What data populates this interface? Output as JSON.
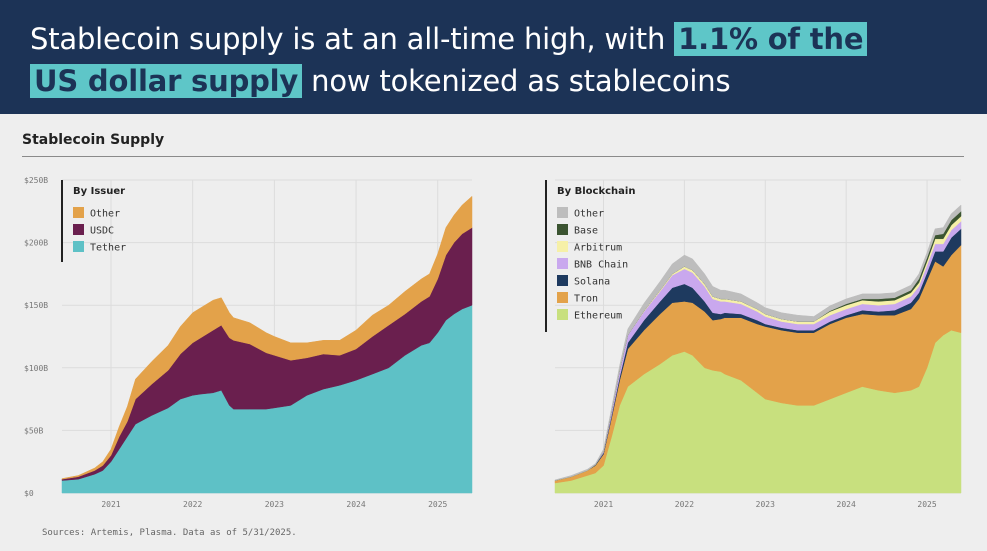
{
  "header": {
    "text_before": "Stablecoin supply is at an all-time high, with",
    "highlight_1": "1.1% of the",
    "highlight_2": "US dollar supply",
    "text_after": "now tokenized as stablecoins"
  },
  "section_title": "Stablecoin Supply",
  "source_note": "Sources: Artemis, Plasma. Data as of 5/31/2025.",
  "colors": {
    "header_bg": "#1c3356",
    "highlight": "#5ec6c8"
  },
  "chart_data": [
    {
      "type": "area",
      "stacked": true,
      "legend_title": "By Issuer",
      "y_tick_labels": [
        "$0",
        "$50B",
        "$100B",
        "$150B",
        "$200B",
        "$250B"
      ],
      "y_ticks": [
        0,
        50,
        100,
        150,
        200,
        250
      ],
      "ylim": [
        0,
        250
      ],
      "x_tick_labels": [
        "2021",
        "2022",
        "2023",
        "2024",
        "2025"
      ],
      "x_ticks": [
        2021,
        2022,
        2023,
        2024,
        2025
      ],
      "xlim": [
        2020.4,
        2025.42
      ],
      "grid": true,
      "legend_position": "top-left",
      "x": [
        2020.4,
        2020.6,
        2020.8,
        2020.9,
        2021.0,
        2021.1,
        2021.2,
        2021.3,
        2021.5,
        2021.7,
        2021.85,
        2022.0,
        2022.1,
        2022.25,
        2022.35,
        2022.45,
        2022.5,
        2022.7,
        2022.9,
        2023.0,
        2023.2,
        2023.4,
        2023.6,
        2023.8,
        2024.0,
        2024.2,
        2024.4,
        2024.6,
        2024.8,
        2024.9,
        2025.0,
        2025.1,
        2025.2,
        2025.3,
        2025.42
      ],
      "series": [
        {
          "name": "Tether",
          "color": "#5ec1c6",
          "values": [
            10,
            11,
            15,
            18,
            25,
            35,
            45,
            55,
            62,
            68,
            75,
            78,
            79,
            80,
            82,
            70,
            67,
            67,
            67,
            68,
            70,
            78,
            83,
            86,
            90,
            95,
            100,
            110,
            118,
            120,
            128,
            138,
            143,
            147,
            150
          ]
        },
        {
          "name": "USDC",
          "color": "#6a1f4e",
          "values": [
            1,
            2,
            3,
            4,
            5,
            10,
            12,
            20,
            25,
            30,
            36,
            42,
            45,
            50,
            52,
            54,
            55,
            52,
            45,
            42,
            36,
            30,
            28,
            24,
            25,
            30,
            34,
            33,
            35,
            37,
            43,
            52,
            57,
            60,
            62
          ]
        },
        {
          "name": "Other",
          "color": "#e3a24a",
          "values": [
            0.5,
            1,
            2,
            3,
            5,
            8,
            12,
            16,
            18,
            20,
            22,
            24,
            24,
            24,
            22,
            20,
            18,
            17,
            16,
            15,
            14,
            12,
            11,
            12,
            15,
            17,
            16,
            18,
            18,
            18,
            20,
            22,
            22,
            23,
            25
          ]
        }
      ]
    },
    {
      "type": "area",
      "stacked": true,
      "legend_title": "By Blockchain",
      "x_tick_labels": [
        "2021",
        "2022",
        "2023",
        "2024",
        "2025"
      ],
      "x_ticks": [
        2021,
        2022,
        2023,
        2024,
        2025
      ],
      "xlim": [
        2020.4,
        2025.42
      ],
      "ylim": [
        0,
        250
      ],
      "grid": true,
      "legend_position": "top-left",
      "x": [
        2020.4,
        2020.6,
        2020.8,
        2020.9,
        2021.0,
        2021.1,
        2021.2,
        2021.3,
        2021.5,
        2021.7,
        2021.85,
        2022.0,
        2022.1,
        2022.25,
        2022.35,
        2022.45,
        2022.5,
        2022.7,
        2022.9,
        2023.0,
        2023.2,
        2023.4,
        2023.6,
        2023.8,
        2024.0,
        2024.2,
        2024.4,
        2024.6,
        2024.8,
        2024.9,
        2025.0,
        2025.1,
        2025.2,
        2025.3,
        2025.42
      ],
      "series": [
        {
          "name": "Ethereum",
          "color": "#c8e07e",
          "values": [
            8,
            10,
            14,
            16,
            22,
            45,
            70,
            85,
            95,
            103,
            110,
            113,
            110,
            100,
            98,
            97,
            95,
            90,
            80,
            75,
            72,
            70,
            70,
            75,
            80,
            85,
            82,
            80,
            82,
            85,
            100,
            120,
            126,
            130,
            128
          ]
        },
        {
          "name": "Tron",
          "color": "#e3a24a",
          "values": [
            2,
            3,
            4,
            6,
            9,
            15,
            20,
            30,
            35,
            40,
            42,
            40,
            42,
            45,
            40,
            42,
            45,
            50,
            55,
            58,
            58,
            58,
            58,
            60,
            60,
            58,
            60,
            62,
            65,
            70,
            70,
            65,
            55,
            60,
            70
          ]
        },
        {
          "name": "Solana",
          "color": "#1e3a5f",
          "values": [
            0,
            0,
            0,
            0.5,
            1,
            2,
            3,
            5,
            8,
            10,
            12,
            14,
            12,
            8,
            6,
            4,
            4,
            3,
            3,
            2,
            2,
            2,
            2,
            2,
            2,
            3,
            3,
            4,
            5,
            5,
            6,
            8,
            12,
            14,
            13
          ]
        },
        {
          "name": "BNB Chain",
          "color": "#c9a8ee",
          "values": [
            0,
            0,
            0,
            0,
            1,
            3,
            5,
            6,
            7,
            8,
            10,
            12,
            12,
            12,
            11,
            10,
            9,
            8,
            7,
            6,
            5,
            5,
            5,
            5,
            5,
            5,
            5,
            5,
            5,
            5,
            6,
            6,
            6,
            6,
            6
          ]
        },
        {
          "name": "Arbitrum",
          "color": "#f6f0a8",
          "values": [
            0,
            0,
            0,
            0,
            0,
            0,
            0,
            0,
            0.5,
            1,
            1,
            2,
            2,
            2,
            2,
            2,
            2,
            2,
            2,
            2,
            2,
            2,
            2,
            3,
            3,
            3,
            3,
            3,
            3,
            3,
            3,
            4,
            4,
            4,
            4
          ]
        },
        {
          "name": "Base",
          "color": "#3b5431",
          "values": [
            0,
            0,
            0,
            0,
            0,
            0,
            0,
            0,
            0,
            0,
            0,
            0,
            0,
            0,
            0,
            0,
            0,
            0,
            0,
            0,
            0,
            0,
            0,
            0.5,
            1,
            1,
            2,
            2,
            2,
            3,
            3,
            3,
            4,
            4,
            4
          ]
        },
        {
          "name": "Other",
          "color": "#bdbdbd",
          "values": [
            0.5,
            1,
            1,
            1,
            2,
            3,
            4,
            5,
            6,
            7,
            8,
            9,
            9,
            8,
            8,
            7,
            7,
            6,
            5,
            5,
            5,
            5,
            4,
            4,
            4,
            4,
            4,
            4,
            4,
            4,
            4,
            5,
            5,
            5,
            5
          ]
        }
      ]
    }
  ]
}
